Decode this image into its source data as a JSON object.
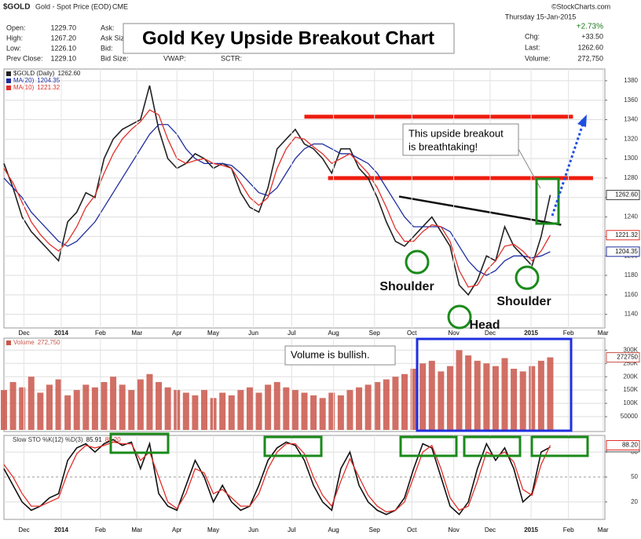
{
  "header": {
    "symbol": "$GOLD",
    "description": "Gold - Spot Price (EOD)",
    "exchange": "CME",
    "date": "Thursday  15-Jan-2015",
    "change_pct": "+2.73%",
    "chg_label": "Chg:",
    "chg": "+33.50",
    "last_label": "Last:",
    "last": "1262.60",
    "volume_label": "Volume:",
    "volume": "272,750",
    "copyright": "©StockCharts.com",
    "fields": [
      [
        "Open:",
        "1229.70"
      ],
      [
        "High:",
        "1267.20"
      ],
      [
        "Low:",
        "1226.10"
      ],
      [
        "Prev Close:",
        "1229.10"
      ]
    ],
    "blank_fields": [
      "Ask:",
      "Ask Size:",
      "Bid:",
      "Bid Size:",
      "VWAP:",
      "SCTR:"
    ]
  },
  "chart_data": [
    {
      "type": "line",
      "title": "Gold Key Upside Breakout Chart",
      "annotations": [
        "This upside breakout",
        "is breathtaking!",
        "Shoulder",
        "Head",
        "Shoulder"
      ],
      "x": [
        0,
        1,
        2,
        3,
        4,
        5,
        6,
        7,
        8,
        9,
        10,
        11,
        12,
        13,
        14,
        15,
        16,
        17,
        18,
        19,
        20,
        21,
        22,
        23,
        24,
        25,
        26,
        27,
        28,
        29,
        30,
        31,
        32,
        33,
        34,
        35,
        36,
        37,
        38,
        39,
        40,
        41,
        42,
        43,
        44,
        45,
        46,
        47,
        48,
        49,
        50,
        51,
        52,
        53,
        54,
        55,
        56,
        57,
        58,
        59,
        60
      ],
      "series": [
        {
          "name": "$GOLD (Daily)",
          "color": "#222222",
          "last_label": "1262.60",
          "values": [
            1295,
            1270,
            1240,
            1225,
            1215,
            1205,
            1195,
            1235,
            1245,
            1265,
            1260,
            1300,
            1320,
            1330,
            1335,
            1340,
            1375,
            1330,
            1300,
            1290,
            1295,
            1305,
            1300,
            1290,
            1295,
            1290,
            1265,
            1250,
            1245,
            1270,
            1310,
            1320,
            1330,
            1315,
            1310,
            1300,
            1285,
            1310,
            1310,
            1290,
            1280,
            1260,
            1235,
            1215,
            1210,
            1220,
            1230,
            1240,
            1225,
            1210,
            1170,
            1160,
            1175,
            1200,
            1195,
            1230,
            1210,
            1200,
            1190,
            1220,
            1262.6
          ]
        },
        {
          "name": "MA(20)",
          "color": "#1f2d9e",
          "last_label": "1204.35",
          "values": [
            1280,
            1270,
            1260,
            1245,
            1235,
            1225,
            1215,
            1210,
            1215,
            1225,
            1235,
            1250,
            1265,
            1280,
            1295,
            1310,
            1325,
            1335,
            1335,
            1325,
            1310,
            1300,
            1295,
            1295,
            1295,
            1293,
            1285,
            1275,
            1265,
            1262,
            1270,
            1285,
            1300,
            1310,
            1315,
            1315,
            1310,
            1305,
            1305,
            1300,
            1295,
            1285,
            1270,
            1255,
            1240,
            1230,
            1230,
            1230,
            1230,
            1225,
            1210,
            1195,
            1185,
            1180,
            1185,
            1195,
            1200,
            1200,
            1198,
            1200,
            1204.35
          ]
        },
        {
          "name": "MA(10)",
          "color": "#e0302a",
          "last_label": "1221.32",
          "values": [
            1290,
            1275,
            1255,
            1235,
            1222,
            1212,
            1205,
            1215,
            1230,
            1250,
            1262,
            1285,
            1305,
            1320,
            1330,
            1338,
            1350,
            1345,
            1320,
            1300,
            1295,
            1298,
            1300,
            1295,
            1293,
            1290,
            1275,
            1260,
            1252,
            1260,
            1290,
            1310,
            1322,
            1320,
            1312,
            1305,
            1295,
            1300,
            1305,
            1295,
            1285,
            1270,
            1250,
            1228,
            1215,
            1215,
            1225,
            1232,
            1230,
            1215,
            1185,
            1168,
            1170,
            1185,
            1195,
            1210,
            1212,
            1205,
            1195,
            1205,
            1221.32
          ]
        }
      ],
      "levels": [
        {
          "value": 1343,
          "x": [
            33,
            62.5
          ],
          "color": "#ee1c0e"
        },
        {
          "value": 1280,
          "x": [
            35.6,
            64.7
          ],
          "color": "#ee1c0e"
        }
      ],
      "trendline": {
        "x": [
          43.4,
          61.2
        ],
        "y": [
          1261,
          1232
        ],
        "color": "#111111"
      },
      "xlim": [
        0,
        66
      ],
      "ylim": [
        1126,
        1392
      ],
      "yticks": [
        1140,
        1160,
        1180,
        1200,
        1220,
        1240,
        1260,
        1280,
        1300,
        1320,
        1340,
        1360,
        1380
      ],
      "xticks": [
        {
          "value": 2.2,
          "label": "Dec"
        },
        {
          "value": 6.3,
          "label": "2014"
        },
        {
          "value": 10.6,
          "label": "Feb"
        },
        {
          "value": 14.6,
          "label": "Mar"
        },
        {
          "value": 19,
          "label": "Apr"
        },
        {
          "value": 23,
          "label": "May"
        },
        {
          "value": 27.4,
          "label": "Jun"
        },
        {
          "value": 31.6,
          "label": "Jul"
        },
        {
          "value": 36.2,
          "label": "Aug"
        },
        {
          "value": 40.7,
          "label": "Sep"
        },
        {
          "value": 44.8,
          "label": "Oct"
        },
        {
          "value": 49.4,
          "label": "Nov"
        },
        {
          "value": 53.4,
          "label": "Dec"
        },
        {
          "value": 57.9,
          "label": "2015"
        },
        {
          "value": 62,
          "label": "Feb"
        },
        {
          "value": 65.8,
          "label": "Mar"
        }
      ],
      "grid": true
    },
    {
      "type": "bar",
      "annotation": "Volume is bullish.",
      "x": [
        0,
        1,
        2,
        3,
        4,
        5,
        6,
        7,
        8,
        9,
        10,
        11,
        12,
        13,
        14,
        15,
        16,
        17,
        18,
        19,
        20,
        21,
        22,
        23,
        24,
        25,
        26,
        27,
        28,
        29,
        30,
        31,
        32,
        33,
        34,
        35,
        36,
        37,
        38,
        39,
        40,
        41,
        42,
        43,
        44,
        45,
        46,
        47,
        48,
        49,
        50,
        51,
        52,
        53,
        54,
        55,
        56,
        57,
        58,
        59,
        60
      ],
      "series": [
        {
          "name": "Volume",
          "color": "#c9564a",
          "last_label": "272,750",
          "values": [
            150000,
            180000,
            160000,
            200000,
            140000,
            170000,
            190000,
            130000,
            150000,
            170000,
            160000,
            180000,
            200000,
            170000,
            150000,
            190000,
            210000,
            180000,
            160000,
            150000,
            140000,
            130000,
            150000,
            120000,
            140000,
            130000,
            150000,
            160000,
            140000,
            170000,
            180000,
            160000,
            150000,
            140000,
            130000,
            120000,
            140000,
            130000,
            150000,
            160000,
            170000,
            180000,
            190000,
            200000,
            210000,
            230000,
            250000,
            260000,
            220000,
            240000,
            300000,
            280000,
            260000,
            250000,
            240000,
            270000,
            230000,
            220000,
            240000,
            260000,
            272750
          ]
        }
      ],
      "xlim": [
        0,
        66
      ],
      "ylim": [
        0,
        345000
      ],
      "yticks": [
        50000,
        {
          "value": 100000,
          "label": "100K"
        },
        {
          "value": 150000,
          "label": "150K"
        },
        {
          "value": 200000,
          "label": "200K"
        },
        {
          "value": 250000,
          "label": "250K"
        },
        {
          "value": 300000,
          "label": "300K"
        }
      ],
      "grid": true
    },
    {
      "type": "line",
      "title": "Slow STO %K(12) %D(3)",
      "x": [
        0,
        1,
        2,
        3,
        4,
        5,
        6,
        7,
        8,
        9,
        10,
        11,
        12,
        13,
        14,
        15,
        16,
        17,
        18,
        19,
        20,
        21,
        22,
        23,
        24,
        25,
        26,
        27,
        28,
        29,
        30,
        31,
        32,
        33,
        34,
        35,
        36,
        37,
        38,
        39,
        40,
        41,
        42,
        43,
        44,
        45,
        46,
        47,
        48,
        49,
        50,
        51,
        52,
        53,
        54,
        55,
        56,
        57,
        58,
        59,
        60
      ],
      "series": [
        {
          "name": "%K",
          "color": "#111111",
          "last_label": "85.91",
          "values": [
            60,
            40,
            20,
            10,
            15,
            25,
            30,
            70,
            85,
            90,
            80,
            90,
            95,
            88,
            92,
            60,
            90,
            30,
            15,
            10,
            40,
            70,
            50,
            20,
            40,
            20,
            10,
            15,
            40,
            70,
            85,
            92,
            88,
            70,
            40,
            20,
            10,
            60,
            80,
            40,
            20,
            10,
            5,
            10,
            25,
            60,
            90,
            85,
            50,
            15,
            5,
            20,
            60,
            90,
            70,
            85,
            60,
            20,
            30,
            80,
            85.91
          ]
        },
        {
          "name": "%D",
          "color": "#e0302a",
          "last_label": "88.20",
          "values": [
            65,
            50,
            30,
            15,
            15,
            20,
            25,
            55,
            78,
            88,
            85,
            88,
            92,
            90,
            90,
            70,
            80,
            50,
            20,
            12,
            30,
            60,
            55,
            30,
            35,
            25,
            15,
            15,
            30,
            60,
            80,
            90,
            90,
            78,
            50,
            28,
            15,
            45,
            72,
            50,
            28,
            15,
            8,
            10,
            20,
            50,
            80,
            88,
            60,
            25,
            10,
            15,
            45,
            80,
            75,
            80,
            68,
            35,
            28,
            65,
            88.2
          ]
        }
      ],
      "xlim": [
        0,
        66
      ],
      "ylim": [
        0,
        100
      ],
      "yticks": [
        20,
        50,
        80
      ],
      "xticks": [
        {
          "value": 2.2,
          "label": "Dec"
        },
        {
          "value": 6.3,
          "label": "2014"
        },
        {
          "value": 10.6,
          "label": "Feb"
        },
        {
          "value": 14.6,
          "label": "Mar"
        },
        {
          "value": 19,
          "label": "Apr"
        },
        {
          "value": 23,
          "label": "May"
        },
        {
          "value": 27.4,
          "label": "Jun"
        },
        {
          "value": 31.6,
          "label": "Jul"
        },
        {
          "value": 36.2,
          "label": "Aug"
        },
        {
          "value": 40.7,
          "label": "Sep"
        },
        {
          "value": 44.8,
          "label": "Oct"
        },
        {
          "value": 49.4,
          "label": "Nov"
        },
        {
          "value": 53.4,
          "label": "Dec"
        },
        {
          "value": 57.9,
          "label": "2015"
        },
        {
          "value": 62,
          "label": "Feb"
        },
        {
          "value": 65.8,
          "label": "Mar"
        }
      ],
      "grid": true
    }
  ]
}
